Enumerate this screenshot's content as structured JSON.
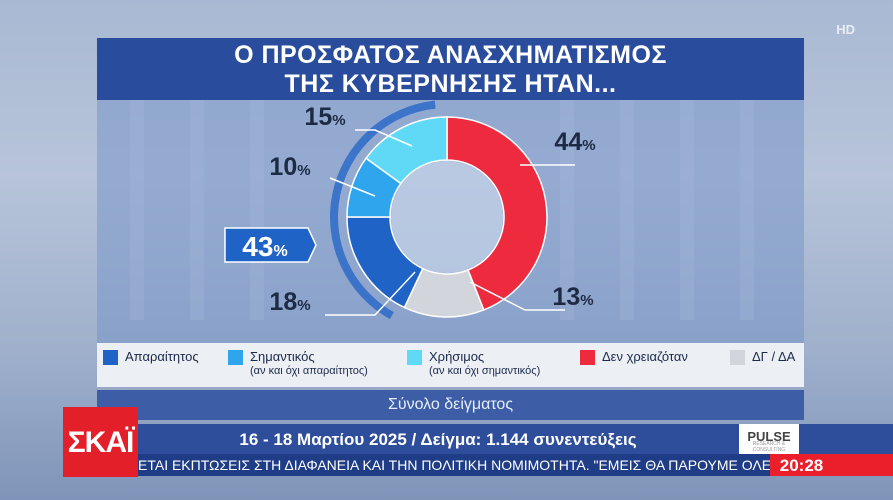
{
  "channel": {
    "hd_label": "HD",
    "logo": "ΣΚΑΪ",
    "clock": "20:28",
    "pollster": "PULSE",
    "pollster_sub": "RESEARCH & CONSULTING"
  },
  "chart_data": {
    "type": "pie",
    "title_lines": [
      "Ο ΠΡΟΣΦΑΤΟΣ ΑΝΑΣΧΗΜΑΤΙΣΜΟΣ",
      "ΤΗΣ ΚΥΒΕΡΝΗΣΗΣ ΗΤΑΝ..."
    ],
    "slices": [
      {
        "name": "Απαραίτητος",
        "value": 18,
        "label": "18",
        "color": "#1f63c7"
      },
      {
        "name": "Σημαντικός",
        "sub": "(αν και όχι απαραίτητος)",
        "value": 10,
        "label": "10",
        "color": "#2ea5ec"
      },
      {
        "name": "Χρήσιμος",
        "sub": "(αν και όχι σημαντικός)",
        "value": 15,
        "label": "15",
        "color": "#5fd9f6"
      },
      {
        "name": "Δεν χρειαζόταν",
        "value": 44,
        "label": "44",
        "color": "#ee2a3f"
      },
      {
        "name": "ΔΓ / ΔΑ",
        "value": 13,
        "label": "13",
        "color": "#d2d6dc"
      }
    ],
    "group_total": {
      "value": "43",
      "unit": "%",
      "color": "#1f63c7"
    },
    "percent_sign": "%",
    "legend_placement": "bottom"
  },
  "footer": {
    "sample_label": "Σύνολο δείγματος",
    "dates": "16 - 18 Μαρτίου 2025 / Δείγμα: 1.144 συνεντεύξεις",
    "ticker": "ΕΤΑΙ ΕΚΠΤΩΣΕΙΣ ΣΤΗ ΔΙΑΦΑΝΕΙΑ ΚΑΙ ΤΗΝ ΠΟΛΙΤΙΚΗ ΝΟΜΙΜΟΤΗΤΑ. \"ΕΜΕΙΣ ΘΑ ΠΑΡΟΥΜΕ ΟΛΕ"
  }
}
